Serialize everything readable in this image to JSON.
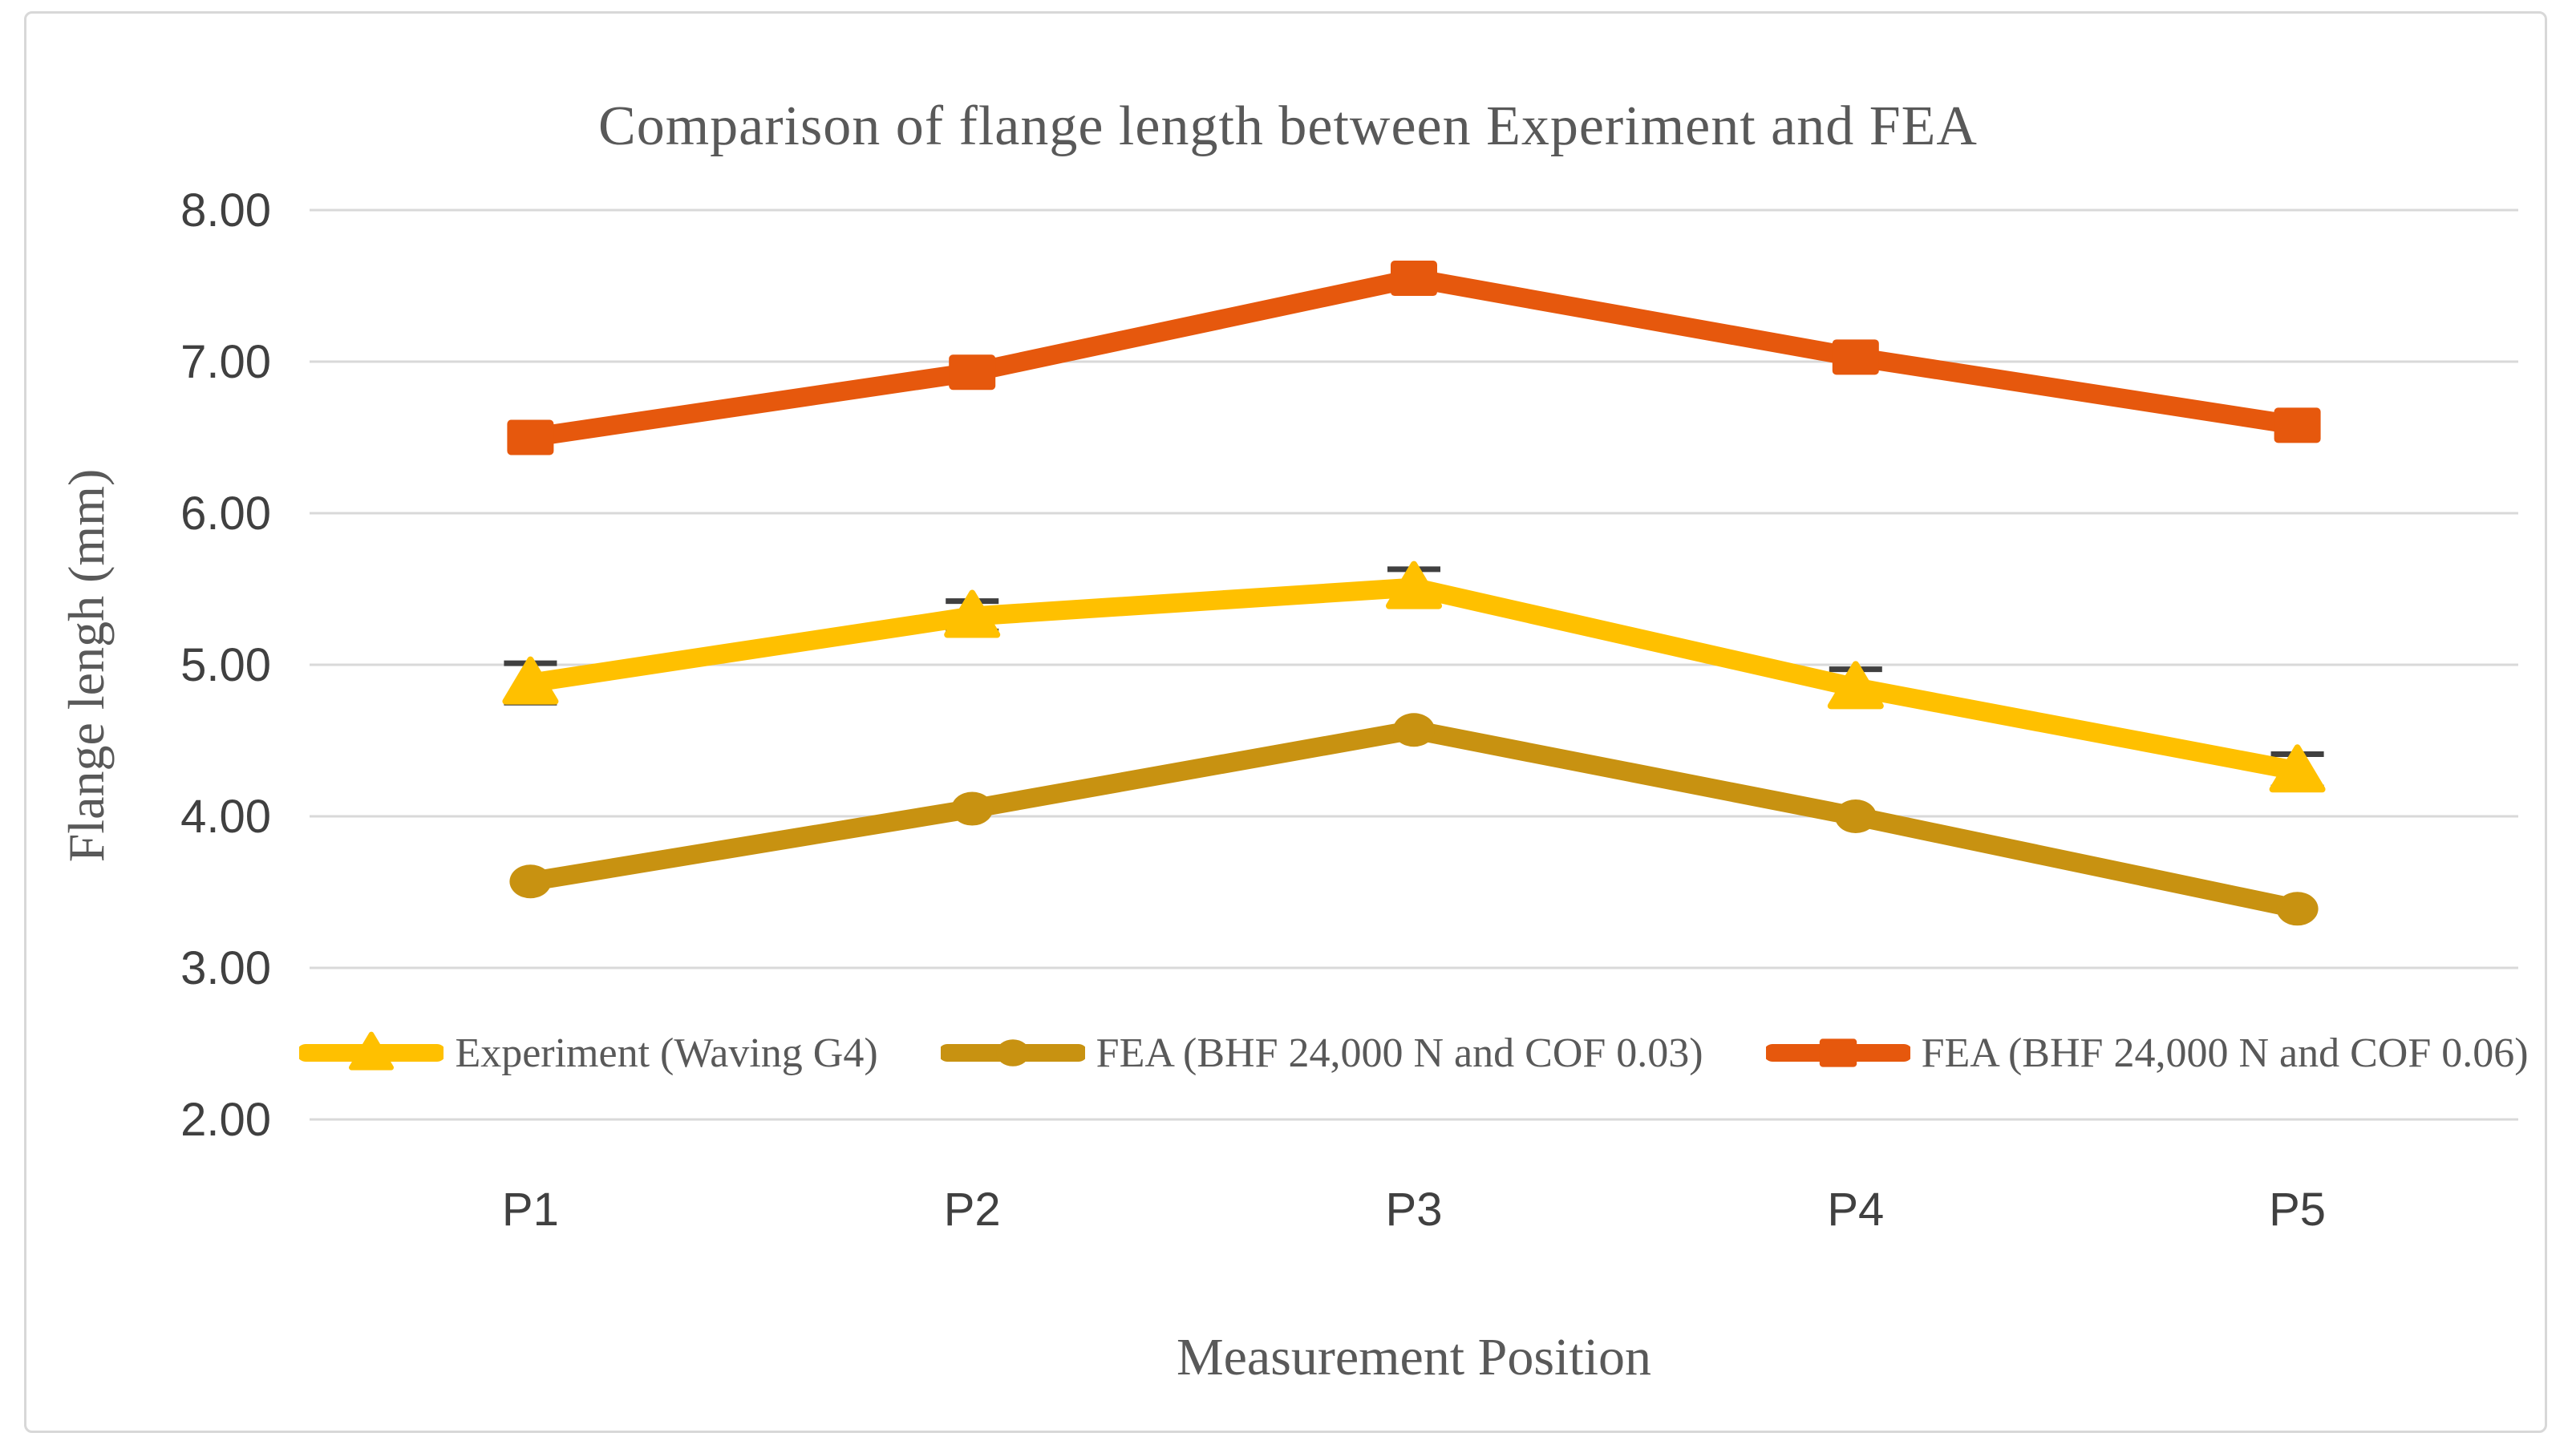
{
  "figure": {
    "background_color": "#ffffff",
    "border_color": "#d8d8d8"
  },
  "chart_data": {
    "type": "line",
    "title": "Comparison of flange length between Experiment and FEA",
    "xlabel": "Measurement Position",
    "ylabel": "Flange lengh (mm)",
    "categories": [
      "P1",
      "P2",
      "P3",
      "P4",
      "P5"
    ],
    "ylim": [
      2.0,
      8.0
    ],
    "ytick_step": 1.0,
    "ytick_labels": [
      "8.00",
      "7.00",
      "6.00",
      "5.00",
      "4.00",
      "3.00",
      "2.00"
    ],
    "grid": true,
    "legend_position": "bottom-inside",
    "gridline_color": "#d9d9d9",
    "text_color": "#595959",
    "tick_color": "#404040",
    "error_bar_color": "#404040",
    "series": [
      {
        "name": "Experiment (Waving G4)",
        "color": "#FFC000",
        "marker": "triangle",
        "values": [
          4.88,
          5.32,
          5.51,
          4.85,
          4.3
        ],
        "error_plus": [
          0.13,
          0.1,
          0.12,
          0.12,
          0.11
        ],
        "error_minus": [
          0.13,
          0.1,
          0.12,
          0.12,
          0.11
        ]
      },
      {
        "name": "FEA (BHF 24,000 N and COF 0.03)",
        "color": "#C89211",
        "marker": "circle",
        "values": [
          3.57,
          4.05,
          4.57,
          4.0,
          3.39
        ]
      },
      {
        "name": "FEA (BHF 24,000 N and COF 0.06)",
        "color": "#E6580D",
        "marker": "square",
        "values": [
          6.5,
          6.93,
          7.55,
          7.03,
          6.58
        ]
      }
    ]
  }
}
